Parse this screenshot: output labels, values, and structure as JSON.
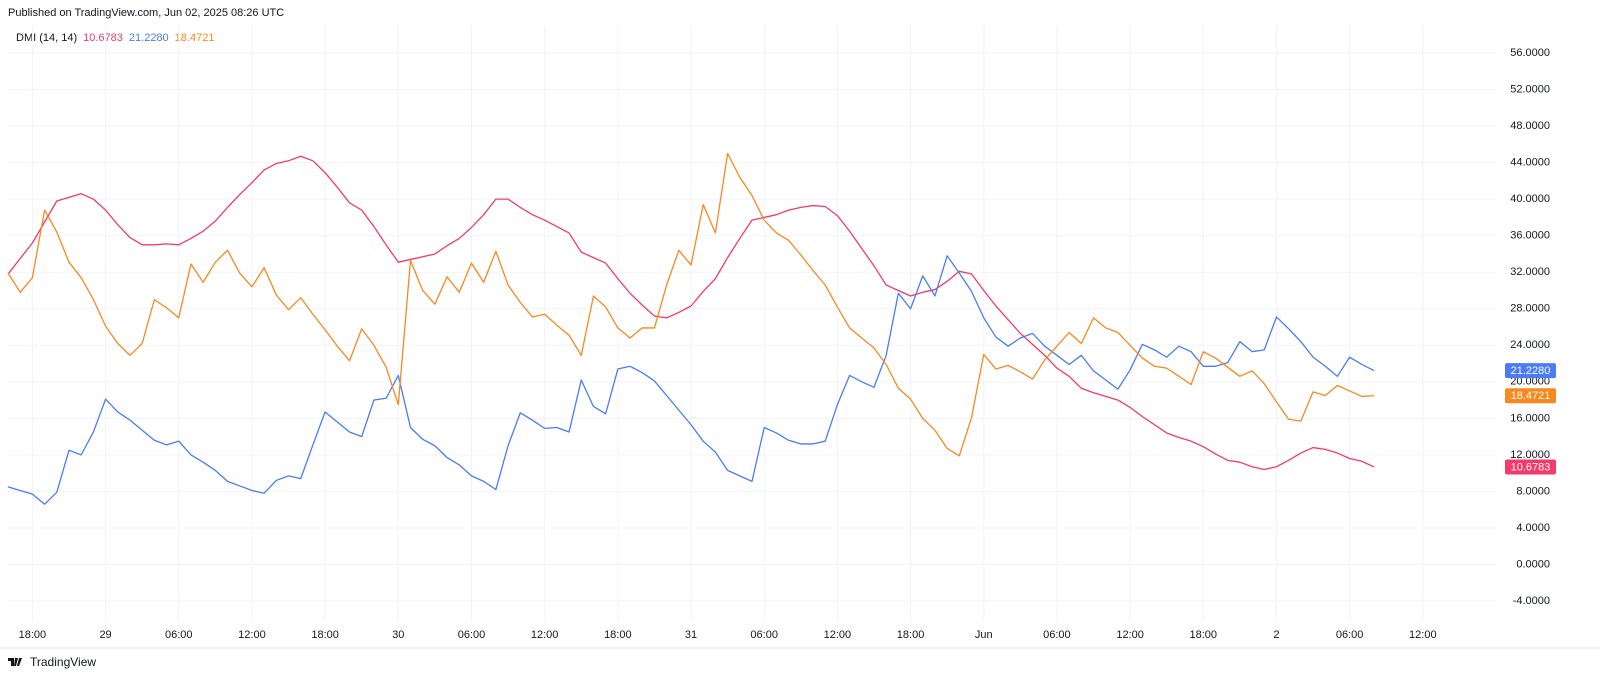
{
  "header": "Published on TradingView.com, Jun 02, 2025 08:26 UTC",
  "footer": "TradingView",
  "chart_data": {
    "type": "line",
    "indicator": "DMI (14, 14)",
    "categories": [
      null,
      null,
      "18:00",
      null,
      null,
      null,
      null,
      null,
      "29",
      null,
      null,
      null,
      null,
      null,
      "06:00",
      null,
      null,
      null,
      null,
      null,
      "12:00",
      null,
      null,
      null,
      null,
      null,
      "18:00",
      null,
      null,
      null,
      null,
      null,
      "30",
      null,
      null,
      null,
      null,
      null,
      "06:00",
      null,
      null,
      null,
      null,
      null,
      "12:00",
      null,
      null,
      null,
      null,
      null,
      "18:00",
      null,
      null,
      null,
      null,
      null,
      "31",
      null,
      null,
      null,
      null,
      null,
      "06:00",
      null,
      null,
      null,
      null,
      null,
      "12:00",
      null,
      null,
      null,
      null,
      null,
      "18:00",
      null,
      null,
      null,
      null,
      null,
      "Jun",
      null,
      null,
      null,
      null,
      null,
      "06:00",
      null,
      null,
      null,
      null,
      null,
      "12:00",
      null,
      null,
      null,
      null,
      null,
      "18:00",
      null,
      null,
      null,
      null,
      null,
      "2",
      null,
      null,
      null,
      null,
      null,
      "06:00",
      null,
      null,
      null,
      null,
      null,
      "12:00",
      null,
      null,
      null,
      null,
      null
    ],
    "series": [
      {
        "color": "#f23a6b",
        "values": [
          31.8,
          33.5,
          35.2,
          37.5,
          39.8,
          40.2,
          40.6,
          40.0,
          38.8,
          37.2,
          35.8,
          35.0,
          35.0,
          35.1,
          35.0,
          35.7,
          36.5,
          37.6,
          39.1,
          40.5,
          41.8,
          43.2,
          43.9,
          44.2,
          44.7,
          44.2,
          42.9,
          41.3,
          39.6,
          38.8,
          37.0,
          35.0,
          33.1,
          33.4,
          33.7,
          34.0,
          34.9,
          35.7,
          36.9,
          38.3,
          40.0,
          40.0,
          39.1,
          38.3,
          37.7,
          37.0,
          36.3,
          34.2,
          33.6,
          33.0,
          31.3,
          29.7,
          28.4,
          27.2,
          27.0,
          27.6,
          28.3,
          29.9,
          31.3,
          33.6,
          35.7,
          37.7,
          38.0,
          38.3,
          38.8,
          39.1,
          39.3,
          39.2,
          38.2,
          36.5,
          34.6,
          32.7,
          30.6,
          30.0,
          29.4,
          29.8,
          30.1,
          31.0,
          32.1,
          31.8,
          30.0,
          28.3,
          26.8,
          25.3,
          24.1,
          22.9,
          21.5,
          20.6,
          19.3,
          18.8,
          18.4,
          18.0,
          17.2,
          16.2,
          15.3,
          14.4,
          13.9,
          13.5,
          12.9,
          12.1,
          11.4,
          11.2,
          10.7,
          10.4,
          10.7,
          11.4,
          12.2,
          12.8,
          12.6,
          12.2,
          11.6,
          11.3,
          10.6783,
          null,
          null,
          null,
          null,
          null,
          null,
          null,
          null,
          null
        ]
      },
      {
        "color": "#4a7cf3",
        "values": [
          8.5,
          8.1,
          7.7,
          6.6,
          7.9,
          12.5,
          12.0,
          14.5,
          18.1,
          16.7,
          15.8,
          14.7,
          13.6,
          13.1,
          13.5,
          12.0,
          11.2,
          10.3,
          9.1,
          8.6,
          8.1,
          7.8,
          9.2,
          9.7,
          9.4,
          13.1,
          16.7,
          15.6,
          14.5,
          14.0,
          18.0,
          18.2,
          20.7,
          15.0,
          13.7,
          13.0,
          11.7,
          10.9,
          9.7,
          9.1,
          8.2,
          13.0,
          16.6,
          15.8,
          14.9,
          15.0,
          14.5,
          20.2,
          17.3,
          16.5,
          21.4,
          21.7,
          21.0,
          20.1,
          18.5,
          16.9,
          15.3,
          13.5,
          12.3,
          10.3,
          9.7,
          9.1,
          15.0,
          14.4,
          13.6,
          13.2,
          13.2,
          13.5,
          17.5,
          20.7,
          20.0,
          19.4,
          22.9,
          29.7,
          28.0,
          31.6,
          29.4,
          33.8,
          31.9,
          29.9,
          27.0,
          24.9,
          23.9,
          24.8,
          25.3,
          23.9,
          22.9,
          21.9,
          22.9,
          21.2,
          20.2,
          19.2,
          21.3,
          24.1,
          23.5,
          22.7,
          23.9,
          23.3,
          21.7,
          21.7,
          22.1,
          24.4,
          23.3,
          23.5,
          27.1,
          25.8,
          24.4,
          22.7,
          21.7,
          20.6,
          22.7,
          21.9,
          21.228,
          null,
          null,
          null,
          null,
          null,
          null,
          null,
          null,
          null
        ],
        "value_labels": [
          null,
          null,
          null,
          null,
          null,
          null,
          null,
          null,
          null,
          null,
          null,
          null,
          null,
          null,
          null,
          null,
          null,
          null,
          null,
          null,
          null,
          null,
          null,
          null,
          null,
          null,
          null,
          null,
          null,
          null,
          null,
          null,
          null,
          null,
          null,
          null,
          null,
          null,
          null,
          null,
          null,
          null,
          null,
          null,
          null,
          null,
          null,
          null,
          null,
          null,
          null,
          null,
          null,
          null,
          null,
          null,
          null,
          null,
          null,
          null,
          null,
          null,
          null,
          null,
          null,
          null,
          null,
          null,
          null,
          null,
          null,
          null,
          null,
          null,
          null,
          null,
          null,
          null,
          null,
          null,
          null,
          null,
          null,
          null,
          null,
          null,
          null,
          null,
          null,
          null,
          null,
          null,
          null,
          null,
          null,
          null,
          null,
          null,
          null,
          null,
          null,
          null,
          null,
          null,
          null,
          null,
          null,
          null,
          null,
          null,
          null,
          null,
          "21.2280",
          null,
          null,
          null,
          null,
          null,
          null,
          null,
          null,
          null
        ]
      },
      {
        "color": "#f7891f",
        "values": [
          31.9,
          29.8,
          31.4,
          38.8,
          36.4,
          33.1,
          31.4,
          29.0,
          26.1,
          24.2,
          22.9,
          24.2,
          29.0,
          28.1,
          27.0,
          32.9,
          30.9,
          33.1,
          34.4,
          31.9,
          30.4,
          32.5,
          29.5,
          27.9,
          29.2,
          27.4,
          25.7,
          23.9,
          22.3,
          25.8,
          24.0,
          21.6,
          17.5,
          33.3,
          30.0,
          28.5,
          31.5,
          29.8,
          33.0,
          30.9,
          34.3,
          30.6,
          28.7,
          27.1,
          27.4,
          26.2,
          25.1,
          22.9,
          29.4,
          28.2,
          25.9,
          24.8,
          25.9,
          25.9,
          30.6,
          34.4,
          32.8,
          39.4,
          36.3,
          45.0,
          42.4,
          40.4,
          37.7,
          36.3,
          35.5,
          33.9,
          32.2,
          30.6,
          28.2,
          25.9,
          24.8,
          23.7,
          21.9,
          19.3,
          18.1,
          16.0,
          14.7,
          12.7,
          11.9,
          16.1,
          23.0,
          21.4,
          21.8,
          21.1,
          20.3,
          22.4,
          23.9,
          25.4,
          24.2,
          27.0,
          25.9,
          25.4,
          24.0,
          22.6,
          21.7,
          21.5,
          20.6,
          19.7,
          23.3,
          22.6,
          21.6,
          20.6,
          21.2,
          19.8,
          17.8,
          15.9,
          15.7,
          18.9,
          18.5,
          19.6,
          19.0,
          18.4,
          18.4721,
          null,
          null,
          null,
          null,
          null,
          null,
          null,
          null,
          null
        ]
      }
    ],
    "ylim": [
      -6.19,
      59.07
    ],
    "yticks": [
      {
        "value": 56,
        "label": "56.0000"
      },
      {
        "value": 52,
        "label": "52.0000"
      },
      {
        "value": 48,
        "label": "48.0000"
      },
      {
        "value": 44,
        "label": "44.0000"
      },
      {
        "value": 40,
        "label": "40.0000"
      },
      {
        "value": 36,
        "label": "36.0000"
      },
      {
        "value": 32,
        "label": "32.0000"
      },
      {
        "value": 28,
        "label": "28.0000"
      },
      {
        "value": 24,
        "label": "24.0000"
      },
      {
        "value": 20,
        "label": "20.0000"
      },
      {
        "value": 16,
        "label": "16.0000"
      },
      {
        "value": 12,
        "label": "12.0000"
      },
      {
        "value": 8,
        "label": "8.0000"
      },
      {
        "value": 4,
        "label": "4.0000"
      },
      {
        "value": 0,
        "label": "0.0000"
      },
      {
        "value": -4,
        "label": "-4.0000"
      }
    ],
    "grid": true
  }
}
